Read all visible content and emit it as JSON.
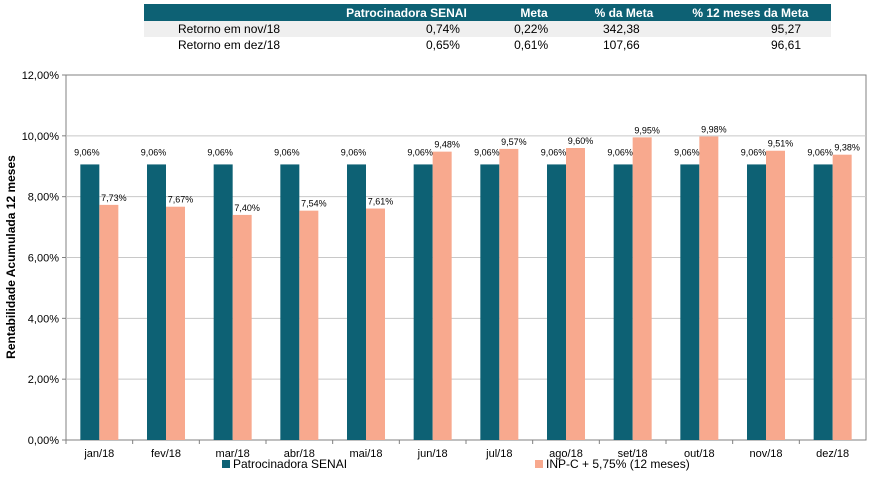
{
  "table": {
    "headers": [
      "",
      "Patrocinadora SENAI",
      "Meta",
      "% da Meta",
      "% 12 meses da Meta"
    ],
    "rows": [
      [
        "Retorno em nov/18",
        "0,74%",
        "0,22%",
        "342,38",
        "95,27"
      ],
      [
        "Retorno em dez/18",
        "0,65%",
        "0,61%",
        "107,66",
        "96,61"
      ]
    ]
  },
  "chart_data": {
    "type": "bar",
    "ylabel": "Rentabilidade Acumulada 12 meses",
    "ylim": [
      0,
      12
    ],
    "yticks": [
      "0,00%",
      "2,00%",
      "4,00%",
      "6,00%",
      "8,00%",
      "10,00%",
      "12,00%"
    ],
    "grid": true,
    "legend_position": "bottom",
    "categories": [
      "jan/18",
      "fev/18",
      "mar/18",
      "abr/18",
      "mai/18",
      "jun/18",
      "jul/18",
      "ago/18",
      "set/18",
      "out/18",
      "nov/18",
      "dez/18"
    ],
    "series": [
      {
        "name": "Patrocinadora SENAI",
        "color": "#0d6174",
        "values": [
          9.06,
          9.06,
          9.06,
          9.06,
          9.06,
          9.06,
          9.06,
          9.06,
          9.06,
          9.06,
          9.06,
          9.06
        ],
        "labels": [
          "9,06%",
          "9,06%",
          "9,06%",
          "9,06%",
          "9,06%",
          "9,06%",
          "9,06%",
          "9,06%",
          "9,06%",
          "9,06%",
          "9,06%",
          "9,06%"
        ]
      },
      {
        "name": "INP-C + 5,75% (12 meses)",
        "color": "#f8a98e",
        "values": [
          7.73,
          7.67,
          7.4,
          7.54,
          7.61,
          9.48,
          9.57,
          9.6,
          9.95,
          9.98,
          9.51,
          9.38
        ],
        "labels": [
          "7,73%",
          "7,67%",
          "7,40%",
          "7,54%",
          "7,61%",
          "9,48%",
          "9,57%",
          "9,60%",
          "9,95%",
          "9,98%",
          "9,51%",
          "9,38%"
        ]
      }
    ]
  }
}
